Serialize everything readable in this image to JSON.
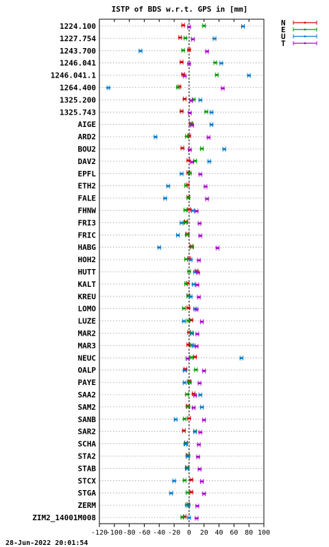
{
  "chart_data": {
    "type": "scatter",
    "title": "ISTP of BDS w.r.t. GPS in [mm]",
    "xlim": [
      -120,
      100
    ],
    "xticks": [
      -120,
      -100,
      -80,
      -60,
      -40,
      -20,
      0,
      20,
      40,
      60,
      80,
      100
    ],
    "grid": "horizontal dotted",
    "legend_position": "top-right outside",
    "series": [
      {
        "name": "N",
        "color": "#cc0000"
      },
      {
        "name": "E",
        "color": "#009900"
      },
      {
        "name": "U",
        "color": "#0077cc"
      },
      {
        "name": "T",
        "color": "#aa00cc"
      }
    ],
    "stations": [
      {
        "name": "1224.100",
        "N": -8,
        "E": 20,
        "U": 72,
        "T": 0
      },
      {
        "name": "1227.754",
        "N": -12,
        "E": -5,
        "U": 34,
        "T": 5
      },
      {
        "name": "1243.700",
        "N": 0,
        "E": -8,
        "U": -65,
        "T": 24
      },
      {
        "name": "1246.041",
        "N": -10,
        "E": 35,
        "U": 43,
        "T": 0
      },
      {
        "name": "1246.041.1",
        "N": -8,
        "E": 37,
        "U": 80,
        "T": -6
      },
      {
        "name": "1264.400",
        "N": -13,
        "E": -15,
        "U": -108,
        "T": 45
      },
      {
        "name": "1325.200",
        "N": -6,
        "E": 6,
        "U": 15,
        "T": 3
      },
      {
        "name": "1325.743",
        "N": -10,
        "E": 23,
        "U": 30,
        "T": 1
      },
      {
        "name": "AIGE",
        "N": 2,
        "E": 3,
        "U": 30,
        "T": 4
      },
      {
        "name": "ARD2",
        "N": 0,
        "E": -3,
        "U": -45,
        "T": 26
      },
      {
        "name": "BOU2",
        "N": -9,
        "E": 17,
        "U": 47,
        "T": 1
      },
      {
        "name": "DAV2",
        "N": -1,
        "E": 8,
        "U": 27,
        "T": 4
      },
      {
        "name": "EPFL",
        "N": -1,
        "E": 1,
        "U": -10,
        "T": 15
      },
      {
        "name": "ETH2",
        "N": -2,
        "E": -4,
        "U": -28,
        "T": 22
      },
      {
        "name": "FALE",
        "N": -1,
        "E": -1,
        "U": -32,
        "T": 24
      },
      {
        "name": "FHNW",
        "N": 0,
        "E": -5,
        "U": 5,
        "T": 10
      },
      {
        "name": "FRI3",
        "N": -4,
        "E": -5,
        "U": -10,
        "T": 14
      },
      {
        "name": "FRIC",
        "N": -2,
        "E": -3,
        "U": -15,
        "T": 15
      },
      {
        "name": "HABG",
        "N": 3,
        "E": 4,
        "U": -40,
        "T": 38
      },
      {
        "name": "HOH2",
        "N": 0,
        "E": -4,
        "U": 2,
        "T": 13
      },
      {
        "name": "HUTT",
        "N": 10,
        "E": 0,
        "U": 8,
        "T": 12
      },
      {
        "name": "KALT",
        "N": -2,
        "E": -4,
        "U": 6,
        "T": 11
      },
      {
        "name": "KREU",
        "N": -1,
        "E": -1,
        "U": 2,
        "T": 13
      },
      {
        "name": "LOMO",
        "N": -1,
        "E": -7,
        "U": 8,
        "T": 10
      },
      {
        "name": "LUZE",
        "N": 3,
        "E": -1,
        "U": -7,
        "T": 17
      },
      {
        "name": "MAR2",
        "N": 0,
        "E": 3,
        "U": 4,
        "T": 11
      },
      {
        "name": "MAR3",
        "N": -1,
        "E": 4,
        "U": 6,
        "T": 10
      },
      {
        "name": "NEUC",
        "N": 8,
        "E": 3,
        "U": 70,
        "T": -2
      },
      {
        "name": "OALP",
        "N": -5,
        "E": 9,
        "U": -6,
        "T": 20
      },
      {
        "name": "PAYE",
        "N": 0,
        "E": 1,
        "U": -6,
        "T": 14
      },
      {
        "name": "SAA2",
        "N": 6,
        "E": -3,
        "U": 15,
        "T": 8
      },
      {
        "name": "SAM2",
        "N": -2,
        "E": -1,
        "U": 17,
        "T": 6
      },
      {
        "name": "SANB",
        "N": 0,
        "E": -6,
        "U": -18,
        "T": 20
      },
      {
        "name": "SAR2",
        "N": -7,
        "E": 8,
        "U": 8,
        "T": 15
      },
      {
        "name": "SCHA",
        "N": -4,
        "E": -4,
        "U": -5,
        "T": 13
      },
      {
        "name": "STA2",
        "N": -2,
        "E": -1,
        "U": -2,
        "T": 12
      },
      {
        "name": "STAB",
        "N": -3,
        "E": -2,
        "U": -3,
        "T": 14
      },
      {
        "name": "STCX",
        "N": 3,
        "E": -6,
        "U": -20,
        "T": 17
      },
      {
        "name": "STGA",
        "N": 3,
        "E": -2,
        "U": -24,
        "T": 20
      },
      {
        "name": "ZERM",
        "N": -1,
        "E": -3,
        "U": -1,
        "T": 11
      },
      {
        "name": "ZIM2_14001M008",
        "N": -6,
        "E": -9,
        "U": 0,
        "T": 10
      }
    ]
  },
  "footer": {
    "timestamp": "28-Jun-2022 20:01:54"
  }
}
